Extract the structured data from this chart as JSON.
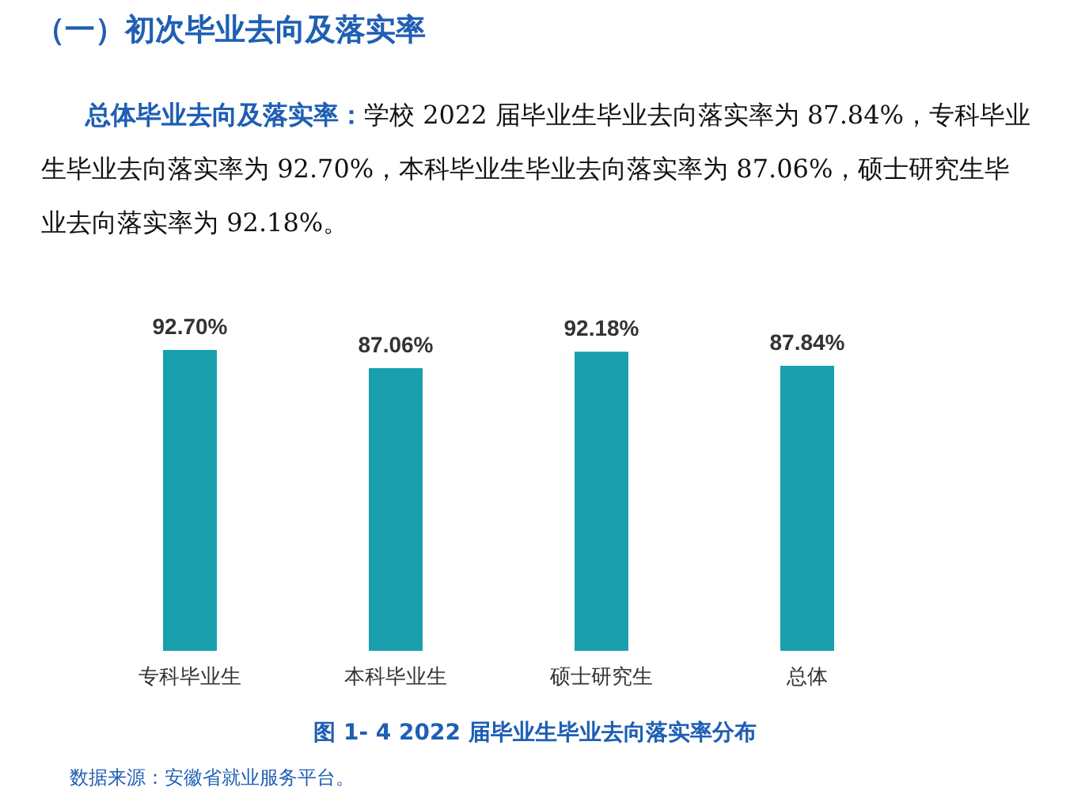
{
  "chart_data": {
    "type": "bar",
    "title": "（一）初次毕业去向及落实率",
    "subtitle": "总体毕业去向及落实率：学校 2022 届毕业生毕业去向落实率为 87.84%，专科毕业生毕业去向落实率为 92.70%，本科毕业生毕业去向落实率为 87.06%，硕士研究生毕业去向落实率为 92.18%。",
    "categories": [
      "专科毕业生",
      "本科毕业生",
      "硕士研究生",
      "总体"
    ],
    "values": [
      92.7,
      87.06,
      92.18,
      87.84
    ],
    "value_labels": [
      "92.70%",
      "87.06%",
      "92.18%",
      "87.84%"
    ],
    "color": "#1a9fae",
    "annotations": [
      "图 1- 4    2022 届毕业生毕业去向落实率分布",
      "数据来源：安徽省就业服务平台。"
    ]
  }
}
